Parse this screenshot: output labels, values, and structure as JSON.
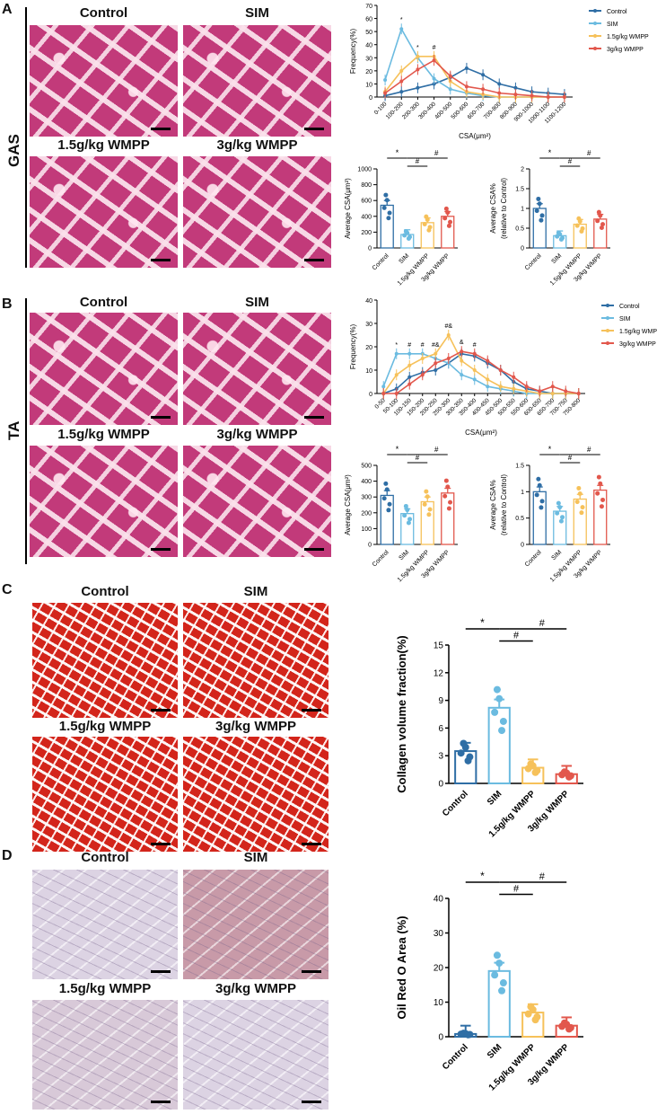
{
  "panels": {
    "A": {
      "letter": "A",
      "side": "GAS"
    },
    "B": {
      "letter": "B",
      "side": "TA"
    },
    "C": {
      "letter": "C"
    },
    "D": {
      "letter": "D"
    }
  },
  "groups": [
    "Control",
    "SIM",
    "1.5g/kg WMPP",
    "3g/kg WMPP"
  ],
  "image_labels": {
    "control": "Control",
    "sim": "SIM",
    "low": "1.5g/kg WMPP",
    "high": "3g/kg WMPP"
  },
  "colors": {
    "control": "#2f6ea5",
    "sim": "#6bbbe0",
    "low": "#f6c15a",
    "high": "#e2574c"
  },
  "chart_data": [
    {
      "id": "A-freq",
      "type": "line",
      "ylabel": "Frequency(%)",
      "xlabel": "CSA(μm²)",
      "ylim": [
        0,
        70
      ],
      "yticks": [
        0,
        10,
        20,
        30,
        40,
        50,
        60,
        70
      ],
      "categories": [
        "0-100",
        "100-200",
        "200-300",
        "300-400",
        "400-500",
        "500-600",
        "600-700",
        "700-800",
        "800-900",
        "900-1000",
        "1000-1100",
        "1100-1200"
      ],
      "series": [
        {
          "name": "Control",
          "values": [
            1,
            4,
            7,
            10,
            15,
            22,
            17,
            10,
            7,
            4,
            3,
            2
          ]
        },
        {
          "name": "SIM",
          "values": [
            13,
            52,
            30,
            14,
            6,
            3,
            1,
            0,
            0,
            0,
            0,
            0
          ]
        },
        {
          "name": "1.5g/kg WMPP",
          "values": [
            4,
            20,
            31,
            31,
            12,
            4,
            2,
            0,
            0,
            0,
            0,
            0
          ]
        },
        {
          "name": "3g/kg WMPP",
          "values": [
            3,
            12,
            21,
            28,
            16,
            8,
            6,
            3,
            2,
            1,
            0,
            0
          ]
        }
      ],
      "annotations": [
        "*",
        "*",
        "#"
      ],
      "legend": "top-right"
    },
    {
      "id": "A-csa",
      "type": "bar",
      "ylabel": "Average CSA(μm²)",
      "ylim": [
        0,
        1000
      ],
      "yticks": [
        0,
        200,
        400,
        600,
        800,
        1000
      ],
      "categories": [
        "Control",
        "SIM",
        "1.5g/kg WMPP",
        "3g/kg WMPP"
      ],
      "values": [
        540,
        170,
        320,
        400
      ],
      "annotations": [
        "*",
        "#",
        "#"
      ]
    },
    {
      "id": "A-rel",
      "type": "bar",
      "ylabel": "Average CSA%",
      "ylabel2": "(relative to Control)",
      "ylim": [
        0,
        2.0
      ],
      "yticks": [
        0,
        0.5,
        1.0,
        1.5,
        2.0
      ],
      "categories": [
        "Control",
        "SIM",
        "1.5g/kg WMPP",
        "3g/kg WMPP"
      ],
      "values": [
        1.0,
        0.31,
        0.6,
        0.73
      ],
      "annotations": [
        "*",
        "#",
        "#"
      ]
    },
    {
      "id": "B-freq",
      "type": "line",
      "ylabel": "Frequency(%)",
      "xlabel": "CSA(μm²)",
      "ylim": [
        0,
        40
      ],
      "yticks": [
        0,
        10,
        20,
        30,
        40
      ],
      "categories": [
        "0-50",
        "50-100",
        "100-150",
        "150-200",
        "200-250",
        "250-300",
        "300-350",
        "350-400",
        "400-450",
        "450-500",
        "500-550",
        "550-600",
        "600-650",
        "650-700",
        "700-750",
        "750-800"
      ],
      "series": [
        {
          "name": "Control",
          "values": [
            0,
            2,
            7,
            9,
            10,
            13,
            17,
            16,
            13,
            10,
            5,
            2,
            1,
            0,
            0,
            0
          ]
        },
        {
          "name": "SIM",
          "values": [
            3,
            17,
            17,
            17,
            15,
            13,
            8,
            6,
            3,
            2,
            1,
            0,
            0,
            0,
            0,
            0
          ]
        },
        {
          "name": "1.5g/kg WMPP",
          "values": [
            0,
            8,
            12,
            15,
            17,
            25,
            14,
            10,
            6,
            3,
            2,
            1,
            0,
            0,
            0,
            0
          ]
        },
        {
          "name": "3g/kg WMPP",
          "values": [
            0,
            0,
            4,
            8,
            13,
            15,
            18,
            17,
            14,
            10,
            7,
            3,
            1,
            3,
            1,
            0
          ]
        }
      ],
      "annotations": [
        "*",
        "#",
        "#",
        "#&",
        "#&",
        "&",
        "#"
      ],
      "legend": "top-right"
    },
    {
      "id": "B-csa",
      "type": "bar",
      "ylabel": "Average CSA(μm²)",
      "ylim": [
        0,
        500
      ],
      "yticks": [
        0,
        100,
        200,
        300,
        400,
        500
      ],
      "categories": [
        "Control",
        "SIM",
        "1.5g/kg WMPP",
        "3g/kg WMPP"
      ],
      "values": [
        310,
        195,
        270,
        325
      ],
      "annotations": [
        "*",
        "#",
        "#"
      ]
    },
    {
      "id": "B-rel",
      "type": "bar",
      "ylabel": "Average CSA%",
      "ylabel2": "(relative to Control)",
      "ylim": [
        0,
        1.5
      ],
      "yticks": [
        0,
        0.5,
        1.0,
        1.5
      ],
      "categories": [
        "Control",
        "SIM",
        "1.5g/kg WMPP",
        "3g/kg WMPP"
      ],
      "values": [
        1.0,
        0.63,
        0.86,
        1.03
      ],
      "annotations": [
        "*",
        "#",
        "#"
      ]
    },
    {
      "id": "C-bar",
      "type": "bar",
      "ylabel": "Collagen volume fraction(%)",
      "ylim": [
        0,
        15
      ],
      "yticks": [
        0,
        3,
        6,
        9,
        12,
        15
      ],
      "categories": [
        "Control",
        "SIM",
        "1.5g/kg WMPP",
        "3g/kg WMPP"
      ],
      "values": [
        3.5,
        8.2,
        1.7,
        1.0
      ],
      "annotations": [
        "*",
        "#",
        "#"
      ]
    },
    {
      "id": "D-bar",
      "type": "bar",
      "ylabel": "Oil Red O Area (%)",
      "ylim": [
        0,
        40
      ],
      "yticks": [
        0,
        10,
        20,
        30,
        40
      ],
      "categories": [
        "Control",
        "SIM",
        "1.5g/kg WMPP",
        "3g/kg WMPP"
      ],
      "values": [
        0.8,
        19,
        7,
        3.2
      ],
      "annotations": [
        "*",
        "#",
        "#"
      ]
    }
  ]
}
